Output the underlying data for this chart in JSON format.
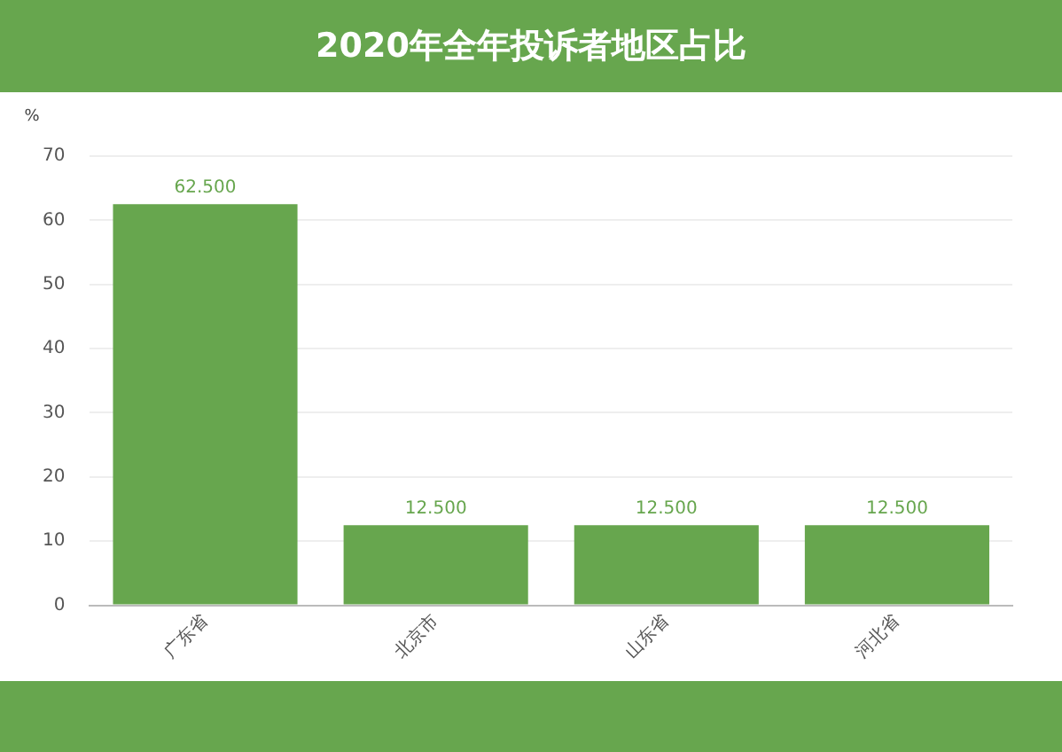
{
  "chart_data": {
    "type": "bar",
    "title": "2020年全年投诉者地区占比",
    "ylabel": "%",
    "categories": [
      "广东省",
      "北京市",
      "山东省",
      "河北省"
    ],
    "values": [
      62.5,
      12.5,
      12.5,
      12.5
    ],
    "value_labels": [
      "62.500",
      "12.500",
      "12.500",
      "12.500"
    ],
    "color": "#67a64e",
    "ylim": [
      0,
      70
    ],
    "yticks": [
      0,
      10,
      20,
      30,
      40,
      50,
      60,
      70
    ],
    "grid": "y",
    "legend": false
  }
}
